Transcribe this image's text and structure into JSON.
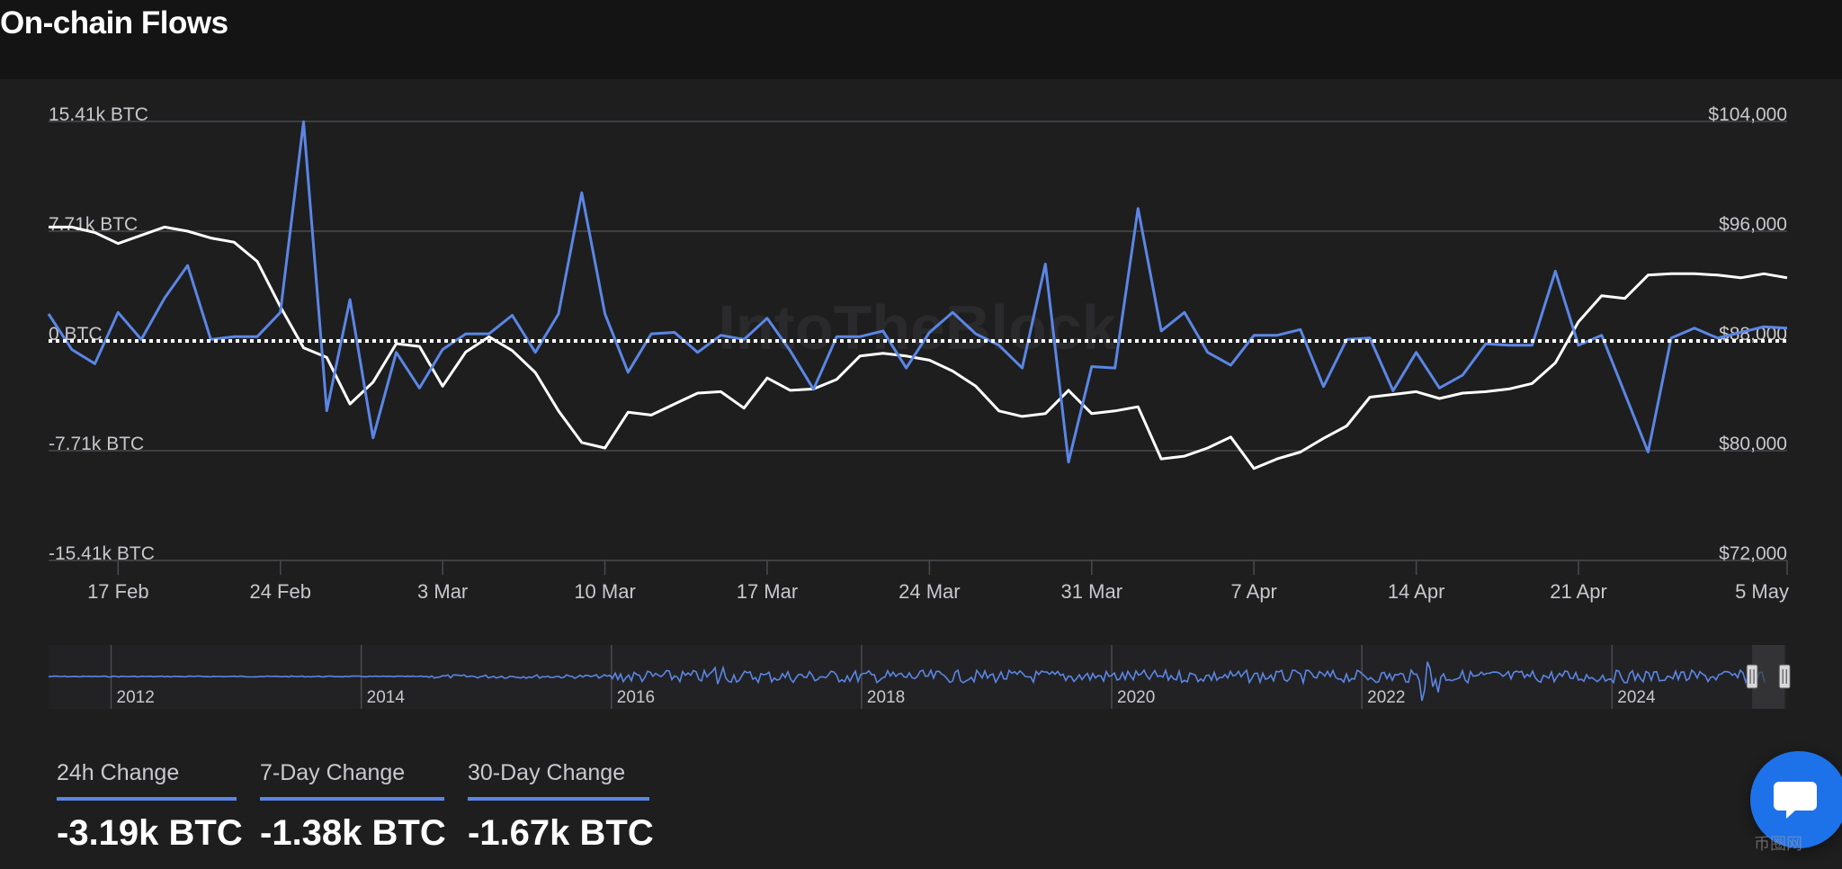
{
  "header": {
    "title": "On-chain Flows"
  },
  "watermark": {
    "main": "IntoTheBlock",
    "corner": "币圈网"
  },
  "chart_data": {
    "type": "line",
    "title": "On-chain Flows",
    "left_axis": {
      "ticks": [
        "15.41k BTC",
        "7.71k BTC",
        "0 BTC",
        "-7.71k BTC",
        "-15.41k BTC"
      ],
      "range": [
        -15.41,
        15.41
      ],
      "unit": "k BTC"
    },
    "right_axis": {
      "ticks": [
        "$104,000",
        "$96,000",
        "$88,000",
        "$80,000",
        "$72,000"
      ],
      "range": [
        72000,
        104000
      ]
    },
    "x_tick_labels": [
      "17 Feb",
      "24 Feb",
      "3 Mar",
      "10 Mar",
      "17 Mar",
      "24 Mar",
      "31 Mar",
      "7 Apr",
      "14 Apr",
      "21 Apr",
      "5 May"
    ],
    "x_tick_days": [
      3,
      10,
      17,
      24,
      31,
      38,
      45,
      52,
      59,
      66,
      75
    ],
    "x_range_days": [
      0,
      75
    ],
    "grid": true,
    "zero_line": "dotted",
    "colors": {
      "net_flows": "#5b86e5",
      "price": "#ffffff",
      "grid": "#4a4a4f",
      "text": "#c8c8cd"
    },
    "series": [
      {
        "axis": "left",
        "x_days": [
          0,
          1,
          2,
          3,
          4,
          5,
          6,
          7,
          8,
          9,
          10,
          11,
          12,
          13,
          14,
          15,
          16,
          17,
          18,
          19,
          20,
          21,
          22,
          23,
          24,
          25,
          26,
          27,
          28,
          29,
          30,
          31,
          32,
          33,
          34,
          35,
          36,
          37,
          38,
          39,
          40,
          41,
          42,
          43,
          44,
          45,
          46,
          47,
          48,
          49,
          50,
          51,
          52,
          53,
          54,
          55,
          56,
          57,
          58,
          59,
          60,
          61,
          62,
          63,
          64,
          65,
          66,
          67,
          68,
          69,
          70,
          71,
          72,
          73,
          74,
          75
        ],
        "values": [
          1.9,
          -0.6,
          -1.6,
          2.0,
          0.1,
          3.0,
          5.3,
          0.1,
          0.3,
          0.3,
          2.0,
          15.4,
          -4.9,
          2.9,
          -6.8,
          -0.8,
          -3.3,
          -0.6,
          0.5,
          0.5,
          1.8,
          -0.8,
          1.9,
          10.4,
          1.9,
          -2.2,
          0.5,
          0.6,
          -0.8,
          0.4,
          0.1,
          1.6,
          -0.7,
          -3.4,
          0.3,
          0.3,
          0.7,
          -1.9,
          0.6,
          2.0,
          0.5,
          -0.3,
          -1.9,
          5.4,
          -8.5,
          -1.8,
          -1.9,
          9.3,
          0.7,
          2.0,
          -0.8,
          -1.7,
          0.4,
          0.4,
          0.8,
          -3.2,
          0.1,
          0.2,
          -3.5,
          -0.8,
          -3.3,
          -2.4,
          -0.2,
          -0.3,
          -0.3,
          4.9,
          -0.3,
          0.4,
          -3.7,
          -7.8,
          0.2,
          0.9,
          0.2,
          0.6,
          1.0,
          0.9
        ]
      },
      {
        "axis": "right",
        "x_days": [
          0,
          1,
          2,
          3,
          4,
          5,
          6,
          7,
          8,
          9,
          10,
          11,
          12,
          13,
          14,
          15,
          16,
          17,
          18,
          19,
          20,
          21,
          22,
          23,
          24,
          25,
          26,
          27,
          28,
          29,
          30,
          31,
          32,
          33,
          34,
          35,
          36,
          37,
          38,
          39,
          40,
          41,
          42,
          43,
          44,
          45,
          46,
          47,
          48,
          49,
          50,
          51,
          52,
          53,
          54,
          55,
          56,
          57,
          58,
          59,
          60,
          61,
          62,
          63,
          64,
          65,
          66,
          67,
          68,
          69,
          70,
          71,
          72,
          73,
          74,
          75
        ],
        "values": [
          96300,
          96300,
          95900,
          95100,
          95700,
          96300,
          96000,
          95500,
          95200,
          93800,
          90500,
          87500,
          86800,
          83400,
          85000,
          87800,
          87600,
          84700,
          87200,
          88300,
          87300,
          85700,
          82900,
          80600,
          80200,
          82800,
          82600,
          83400,
          84200,
          84300,
          83100,
          85300,
          84400,
          84500,
          85200,
          86900,
          87100,
          86900,
          86600,
          85800,
          84700,
          82900,
          82500,
          82700,
          84400,
          82700,
          82900,
          83200,
          79400,
          79600,
          80200,
          81000,
          78700,
          79400,
          79900,
          80900,
          81800,
          83900,
          84100,
          84300,
          83800,
          84200,
          84300,
          84500,
          84900,
          86400,
          89400,
          91300,
          91100,
          92800,
          92900,
          92900,
          92800,
          92600,
          92900,
          92600
        ]
      }
    ],
    "navigator": {
      "x_tick_labels": [
        "2012",
        "2014",
        "2016",
        "2018",
        "2020",
        "2022",
        "2024"
      ],
      "x_range_years": [
        2011.5,
        2025.4
      ],
      "x_tick_years": [
        2012,
        2014,
        2016,
        2018,
        2020,
        2022,
        2024
      ],
      "selection_years": [
        2025.12,
        2025.38
      ]
    }
  },
  "stats": [
    {
      "label": "24h Change",
      "value": "-3.19k BTC"
    },
    {
      "label": "7-Day Change",
      "value": "-1.38k BTC"
    },
    {
      "label": "30-Day Change",
      "value": "-1.67k BTC"
    }
  ]
}
